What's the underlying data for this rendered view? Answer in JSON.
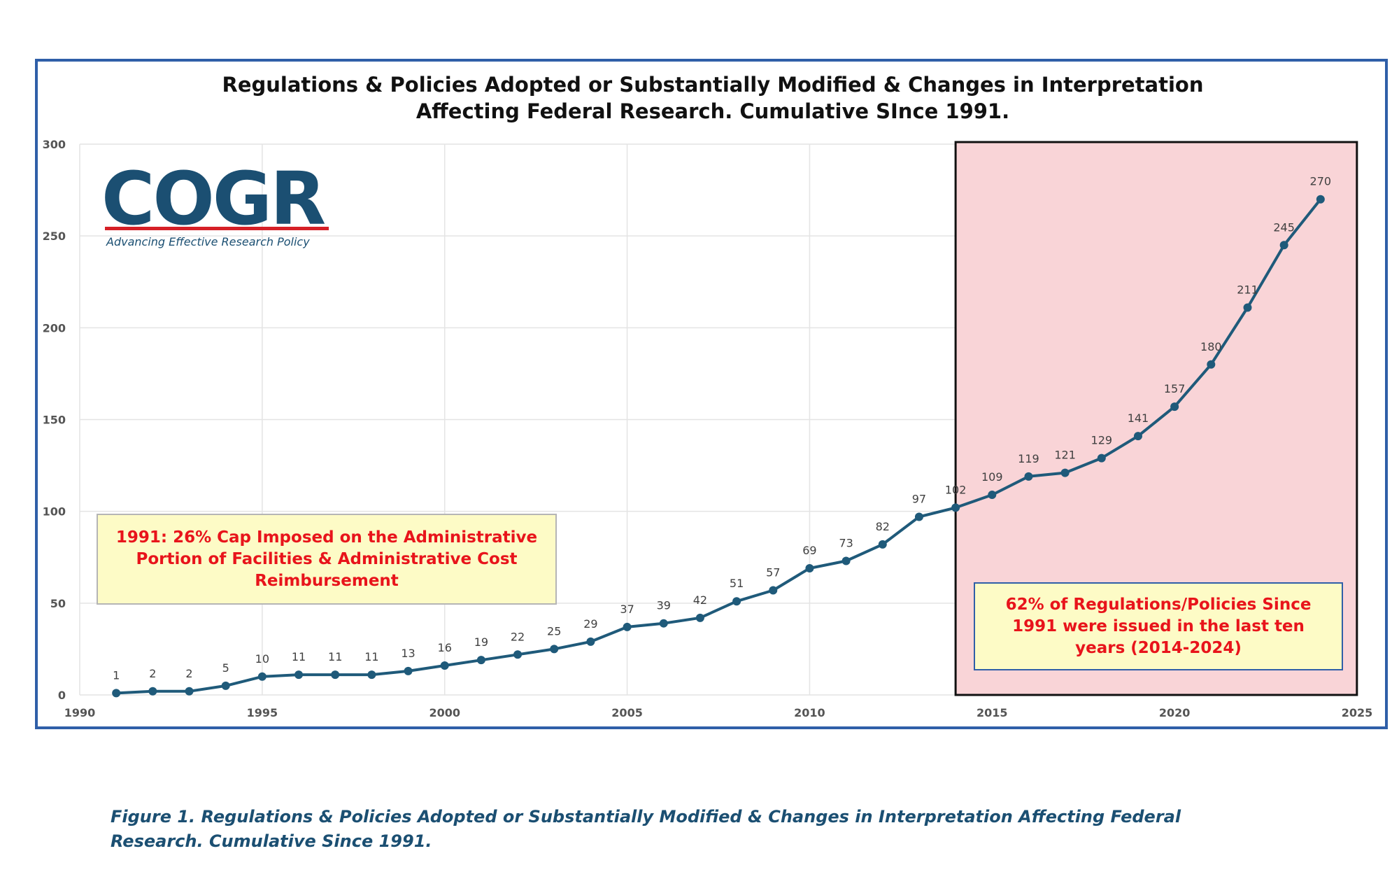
{
  "title": {
    "line1": "Regulations & Policies Adopted or Substantially Modified & Changes in Interpretation",
    "line2": "Affecting Federal Research. Cumulative SInce 1991."
  },
  "logo": {
    "word": "COGR",
    "tagline": "Advancing Effective Research Policy",
    "color": "#1b4f72",
    "bar_color": "#d62027"
  },
  "annotations": {
    "left_note": "1991:  26% Cap Imposed on the Administrative Portion of Facilities & Administrative Cost Reimbursement",
    "right_note": "62% of Regulations/Policies Since 1991 were issued in the last ten years (2014-2024)",
    "text_color": "#e8141b",
    "highlight_fill": "#f9d4d7",
    "highlight_range": [
      2014,
      2024
    ]
  },
  "caption": "Figure 1.  Regulations & Policies Adopted or Substantially Modified & Changes in Interpretation Affecting Federal Research.  Cumulative Since 1991.",
  "caption_color": "#1b4f72",
  "chart_data": {
    "type": "line",
    "title": "Regulations & Policies Adopted or Substantially Modified & Changes in Interpretation Affecting Federal Research. Cumulative SInce 1991.",
    "xlabel": "",
    "ylabel": "",
    "xlim": [
      1990,
      2025
    ],
    "ylim": [
      0,
      300
    ],
    "x_ticks": [
      1990,
      1995,
      2000,
      2005,
      2010,
      2015,
      2020,
      2025
    ],
    "y_ticks": [
      0,
      50,
      100,
      150,
      200,
      250,
      300
    ],
    "grid": true,
    "line_color": "#1f5a7a",
    "series": [
      {
        "name": "Cumulative",
        "x": [
          1991,
          1992,
          1993,
          1994,
          1995,
          1996,
          1997,
          1998,
          1999,
          2000,
          2001,
          2002,
          2003,
          2004,
          2005,
          2006,
          2007,
          2008,
          2009,
          2010,
          2011,
          2012,
          2013,
          2014,
          2015,
          2016,
          2017,
          2018,
          2019,
          2020,
          2021,
          2022,
          2023,
          2024
        ],
        "values": [
          1,
          2,
          2,
          5,
          10,
          11,
          11,
          11,
          13,
          16,
          19,
          22,
          25,
          29,
          37,
          39,
          42,
          51,
          57,
          69,
          73,
          82,
          97,
          102,
          109,
          119,
          121,
          129,
          141,
          157,
          180,
          211,
          245,
          270
        ]
      }
    ]
  }
}
